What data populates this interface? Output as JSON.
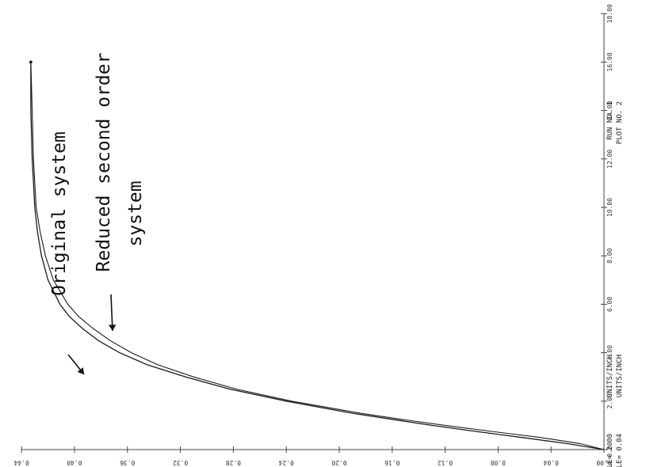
{
  "chart_data": {
    "type": "line",
    "title": "",
    "xlabel": "",
    "ylabel": "",
    "xlim": [
      0,
      18
    ],
    "ylim": [
      0.0,
      0.44
    ],
    "x_ticks": [
      "0.00",
      "2.00",
      "4.00",
      "6.00",
      "8.00",
      "10.00",
      "12.00",
      "14.00",
      "16.00",
      "18.00"
    ],
    "y_ticks": [
      "0.00",
      "0.04",
      "0.08",
      "0.12",
      "0.16",
      "0.20",
      "0.24",
      "0.28",
      "0.32",
      "0.36",
      "0.40",
      "0.44"
    ],
    "series": [
      {
        "name": "Original system",
        "x": [
          0,
          0.25,
          0.5,
          0.75,
          1.0,
          1.25,
          1.5,
          2.0,
          2.5,
          3.0,
          3.5,
          4.0,
          4.5,
          5.0,
          5.5,
          6.0,
          7.0,
          8.0,
          9.0,
          10.0,
          12.0,
          14.0,
          16.0
        ],
        "y": [
          0.0,
          0.028,
          0.062,
          0.097,
          0.13,
          0.16,
          0.19,
          0.24,
          0.283,
          0.316,
          0.345,
          0.366,
          0.382,
          0.394,
          0.404,
          0.411,
          0.42,
          0.425,
          0.428,
          0.43,
          0.432,
          0.433,
          0.433
        ]
      },
      {
        "name": "Reduced second order system",
        "x": [
          0,
          0.25,
          0.5,
          0.75,
          1.0,
          1.25,
          1.5,
          2.0,
          2.5,
          3.0,
          3.5,
          4.0,
          4.5,
          5.0,
          5.5,
          6.0,
          7.0,
          8.0,
          9.0,
          10.0,
          12.0,
          14.0,
          16.0
        ],
        "y": [
          0.0,
          0.018,
          0.048,
          0.085,
          0.12,
          0.153,
          0.184,
          0.236,
          0.278,
          0.31,
          0.337,
          0.357,
          0.373,
          0.386,
          0.397,
          0.405,
          0.416,
          0.422,
          0.426,
          0.429,
          0.431,
          0.432,
          0.433
        ]
      }
    ],
    "annotations": {
      "original": "Original system",
      "reduced_line1": "Reduced second order",
      "reduced_line2": "system"
    },
    "scale_notes": {
      "xscale": "XSCALE= 2.00",
      "yscale": "YSCALE= 0.04",
      "units1": "UNITS/INCH",
      "units2": "UNITS/INCH",
      "run": "RUN NO. 1",
      "plot": "PLOT NO. 2"
    },
    "grid": false,
    "legend": "none"
  }
}
